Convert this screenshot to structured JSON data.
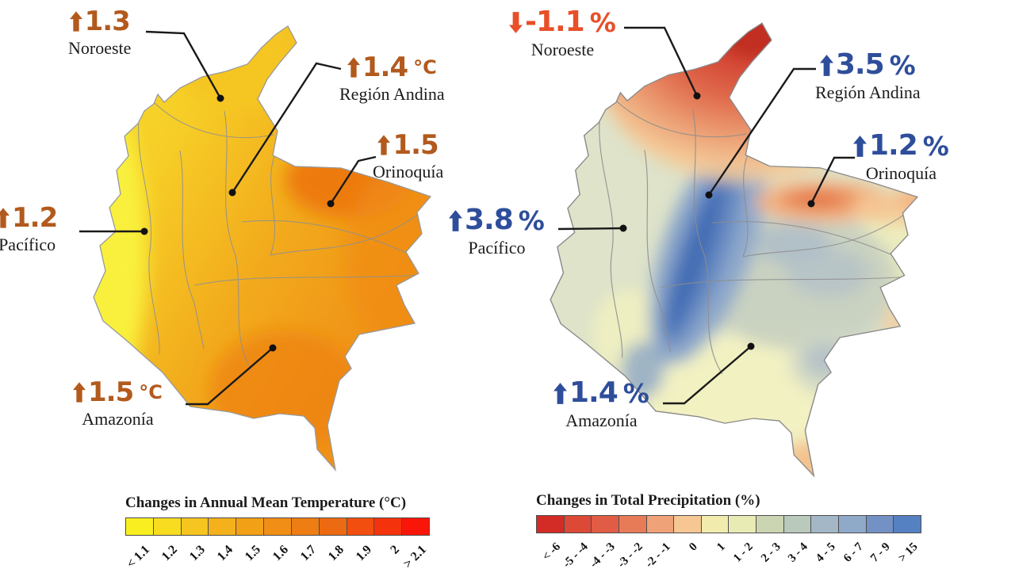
{
  "page": {
    "background": "#ffffff"
  },
  "maps": [
    {
      "id": "temperature",
      "accent_color": "#b25a1d",
      "legend": {
        "title": "Changes in Annual Mean Temperature (°C)",
        "labels": [
          "< 1.1",
          "1.2",
          "1.3",
          "1.4",
          "1.5",
          "1.6",
          "1.7",
          "1.8",
          "1.9",
          "2",
          "> 2.1"
        ],
        "colors": [
          "#f9ef20",
          "#f8dc20",
          "#f6c51f",
          "#f4b11b",
          "#f2a016",
          "#f08e16",
          "#ee7d13",
          "#ec6a11",
          "#f14e0f",
          "#f4330c",
          "#f91508"
        ]
      },
      "annotations": [
        {
          "region": "Noroeste",
          "value": "1.3",
          "unit": "",
          "direction": "up",
          "color": "#b25a1d"
        },
        {
          "region": "Región Andina",
          "value": "1.4",
          "unit": "°C",
          "direction": "up",
          "color": "#b25a1d"
        },
        {
          "region": "Orinoquía",
          "value": "1.5",
          "unit": "",
          "direction": "up",
          "color": "#b25a1d"
        },
        {
          "region": "Pacífico",
          "value": "1.2",
          "unit": "",
          "direction": "up",
          "color": "#b25a1d"
        },
        {
          "region": "Amazonía",
          "value": "1.5",
          "unit": "°C",
          "direction": "up",
          "color": "#b25a1d"
        }
      ]
    },
    {
      "id": "precipitation",
      "accent_color": "#2e4e9b",
      "legend": {
        "title": "Changes in Total Precipitation (%)",
        "labels": [
          "< -6",
          "-5 - -4",
          "-4 - -3",
          "-3 - -2",
          "-2 - -1",
          "0",
          "1",
          "1 - 2",
          "2 - 3",
          "3 - 4",
          "4 - 5",
          "6 - 7",
          "7 - 9",
          "> 15"
        ],
        "colors": [
          "#d32b26",
          "#dc4937",
          "#e15c44",
          "#e77b58",
          "#efa178",
          "#f6c693",
          "#f1ecae",
          "#e8ecb4",
          "#ccd5b2",
          "#b9c9bb",
          "#a3b7c7",
          "#8fa9c9",
          "#7391c5",
          "#5581c2"
        ]
      },
      "annotations": [
        {
          "region": "Noroeste",
          "value": "-1.1",
          "unit": "%",
          "direction": "down",
          "color": "#e84f28"
        },
        {
          "region": "Región Andina",
          "value": "3.5",
          "unit": "%",
          "direction": "up",
          "color": "#2e4e9b"
        },
        {
          "region": "Orinoquía",
          "value": "1.2",
          "unit": "%",
          "direction": "up",
          "color": "#2e4e9b"
        },
        {
          "region": "Pacífico",
          "value": "3.8",
          "unit": "%",
          "direction": "up",
          "color": "#2e4e9b"
        },
        {
          "region": "Amazonía",
          "value": "1.4",
          "unit": "%",
          "direction": "up",
          "color": "#2e4e9b"
        }
      ]
    }
  ],
  "chart_data": [
    {
      "type": "choropleth-map",
      "title": "Changes in Annual Mean Temperature (°C)",
      "regions": [
        "Noroeste",
        "Región Andina",
        "Orinoquía",
        "Pacífico",
        "Amazonía"
      ],
      "values": [
        1.3,
        1.4,
        1.5,
        1.2,
        1.5
      ],
      "unit": "°C",
      "scale_labels": [
        "< 1.1",
        "1.2",
        "1.3",
        "1.4",
        "1.5",
        "1.6",
        "1.7",
        "1.8",
        "1.9",
        "2",
        "> 2.1"
      ],
      "scale_colors": [
        "#f9ef20",
        "#f8dc20",
        "#f6c51f",
        "#f4b11b",
        "#f2a016",
        "#f08e16",
        "#ee7d13",
        "#ec6a11",
        "#f14e0f",
        "#f4330c",
        "#f91508"
      ],
      "legend_position": "bottom"
    },
    {
      "type": "choropleth-map",
      "title": "Changes in Total Precipitation (%)",
      "regions": [
        "Noroeste",
        "Región Andina",
        "Orinoquía",
        "Pacífico",
        "Amazonía"
      ],
      "values": [
        -1.1,
        3.5,
        1.2,
        3.8,
        1.4
      ],
      "unit": "%",
      "scale_labels": [
        "< -6",
        "-5 - -4",
        "-4 - -3",
        "-3 - -2",
        "-2 - -1",
        "0",
        "1",
        "1 - 2",
        "2 - 3",
        "3 - 4",
        "4 - 5",
        "6 - 7",
        "7 - 9",
        "> 15"
      ],
      "scale_colors": [
        "#d32b26",
        "#dc4937",
        "#e15c44",
        "#e77b58",
        "#efa178",
        "#f6c693",
        "#f1ecae",
        "#e8ecb4",
        "#ccd5b2",
        "#b9c9bb",
        "#a3b7c7",
        "#8fa9c9",
        "#7391c5",
        "#5581c2"
      ],
      "legend_position": "bottom"
    }
  ]
}
